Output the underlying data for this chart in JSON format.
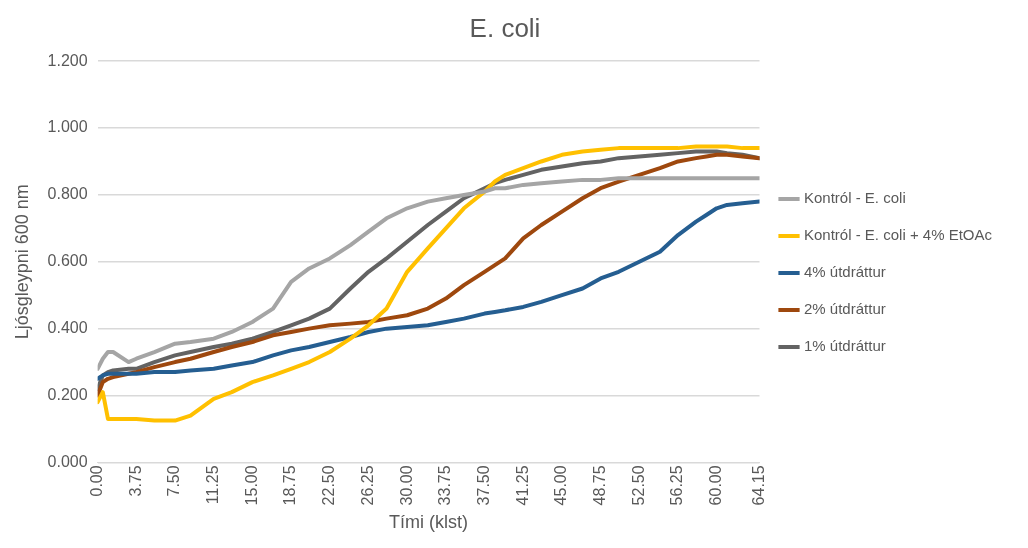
{
  "chart_data": {
    "type": "line",
    "title": "E. coli",
    "xlabel": "Tími (klst)",
    "ylabel": "Ljósgleypni 600 nm",
    "x": [
      0,
      0.5,
      1,
      1.5,
      3,
      3.75,
      5.5,
      7.5,
      9,
      11.25,
      13,
      15,
      17,
      18.75,
      20.5,
      22.5,
      24.5,
      26.25,
      28,
      30,
      32,
      33.75,
      35.5,
      37.5,
      38.5,
      39.5,
      41.25,
      43,
      45,
      47,
      48.75,
      50.5,
      52.5,
      54.5,
      56.25,
      58,
      59,
      60,
      61,
      62.5,
      64.15
    ],
    "series": [
      {
        "name": "Kontról - E. coli",
        "color": "#a5a5a5",
        "values": [
          0.28,
          0.31,
          0.33,
          0.33,
          0.3,
          0.31,
          0.33,
          0.355,
          0.36,
          0.37,
          0.39,
          0.42,
          0.46,
          0.54,
          0.58,
          0.61,
          0.65,
          0.69,
          0.73,
          0.76,
          0.78,
          0.79,
          0.8,
          0.81,
          0.82,
          0.82,
          0.83,
          0.835,
          0.84,
          0.845,
          0.845,
          0.85,
          0.85,
          0.85,
          0.85,
          0.85,
          0.85,
          0.85,
          0.85,
          0.85,
          0.85
        ]
      },
      {
        "name": "Kontról - E. coli + 4% EtOAc",
        "color": "#ffc000",
        "values": [
          0.18,
          0.21,
          0.13,
          0.13,
          0.13,
          0.13,
          0.125,
          0.125,
          0.14,
          0.19,
          0.21,
          0.24,
          0.26,
          0.28,
          0.3,
          0.33,
          0.37,
          0.41,
          0.46,
          0.57,
          0.64,
          0.7,
          0.76,
          0.81,
          0.84,
          0.86,
          0.88,
          0.9,
          0.92,
          0.93,
          0.935,
          0.94,
          0.94,
          0.94,
          0.94,
          0.945,
          0.945,
          0.945,
          0.945,
          0.94,
          0.94
        ]
      },
      {
        "name": "4% útdráttur",
        "color": "#255e91",
        "values": [
          0.25,
          0.26,
          0.265,
          0.265,
          0.265,
          0.265,
          0.27,
          0.27,
          0.275,
          0.28,
          0.29,
          0.3,
          0.32,
          0.335,
          0.345,
          0.36,
          0.375,
          0.39,
          0.4,
          0.405,
          0.41,
          0.42,
          0.43,
          0.445,
          0.45,
          0.455,
          0.465,
          0.48,
          0.5,
          0.52,
          0.55,
          0.57,
          0.6,
          0.63,
          0.68,
          0.72,
          0.74,
          0.76,
          0.77,
          0.775,
          0.78
        ]
      },
      {
        "name": "2% útdráttur",
        "color": "#9e480e",
        "values": [
          0.2,
          0.24,
          0.25,
          0.255,
          0.265,
          0.27,
          0.285,
          0.3,
          0.31,
          0.33,
          0.345,
          0.36,
          0.38,
          0.39,
          0.4,
          0.41,
          0.415,
          0.42,
          0.43,
          0.44,
          0.46,
          0.49,
          0.53,
          0.57,
          0.59,
          0.61,
          0.67,
          0.71,
          0.75,
          0.79,
          0.82,
          0.84,
          0.86,
          0.88,
          0.9,
          0.91,
          0.915,
          0.92,
          0.92,
          0.915,
          0.91
        ]
      },
      {
        "name": "1% útdráttur",
        "color": "#636363",
        "values": [
          0.22,
          0.26,
          0.27,
          0.275,
          0.28,
          0.28,
          0.3,
          0.32,
          0.33,
          0.345,
          0.355,
          0.37,
          0.39,
          0.41,
          0.43,
          0.46,
          0.52,
          0.57,
          0.61,
          0.66,
          0.71,
          0.75,
          0.79,
          0.82,
          0.835,
          0.845,
          0.86,
          0.875,
          0.885,
          0.895,
          0.9,
          0.91,
          0.915,
          0.92,
          0.925,
          0.93,
          0.93,
          0.93,
          0.925,
          0.92,
          0.91
        ]
      }
    ],
    "xlim": [
      0,
      64.15
    ],
    "xticks": [
      {
        "value": 0,
        "label": "0.00"
      },
      {
        "value": 3.75,
        "label": "3.75"
      },
      {
        "value": 7.5,
        "label": "7.50"
      },
      {
        "value": 11.25,
        "label": "11.25"
      },
      {
        "value": 15,
        "label": "15.00"
      },
      {
        "value": 18.75,
        "label": "18.75"
      },
      {
        "value": 22.5,
        "label": "22.50"
      },
      {
        "value": 26.25,
        "label": "26.25"
      },
      {
        "value": 30,
        "label": "30.00"
      },
      {
        "value": 33.75,
        "label": "33.75"
      },
      {
        "value": 37.5,
        "label": "37.50"
      },
      {
        "value": 41.25,
        "label": "41.25"
      },
      {
        "value": 45,
        "label": "45.00"
      },
      {
        "value": 48.75,
        "label": "48.75"
      },
      {
        "value": 52.5,
        "label": "52.50"
      },
      {
        "value": 56.25,
        "label": "56.25"
      },
      {
        "value": 60,
        "label": "60.00"
      },
      {
        "value": 64.15,
        "label": "64.15"
      }
    ],
    "ylim": [
      0,
      1.2
    ],
    "yticks": [
      {
        "value": 0,
        "label": "0.000"
      },
      {
        "value": 0.2,
        "label": "0.200"
      },
      {
        "value": 0.4,
        "label": "0.400"
      },
      {
        "value": 0.6,
        "label": "0.600"
      },
      {
        "value": 0.8,
        "label": "0.800"
      },
      {
        "value": 1,
        "label": "1.000"
      },
      {
        "value": 1.2,
        "label": "1.200"
      }
    ],
    "grid": "y",
    "legend": "right",
    "marker": "none",
    "line_style": "solid"
  }
}
